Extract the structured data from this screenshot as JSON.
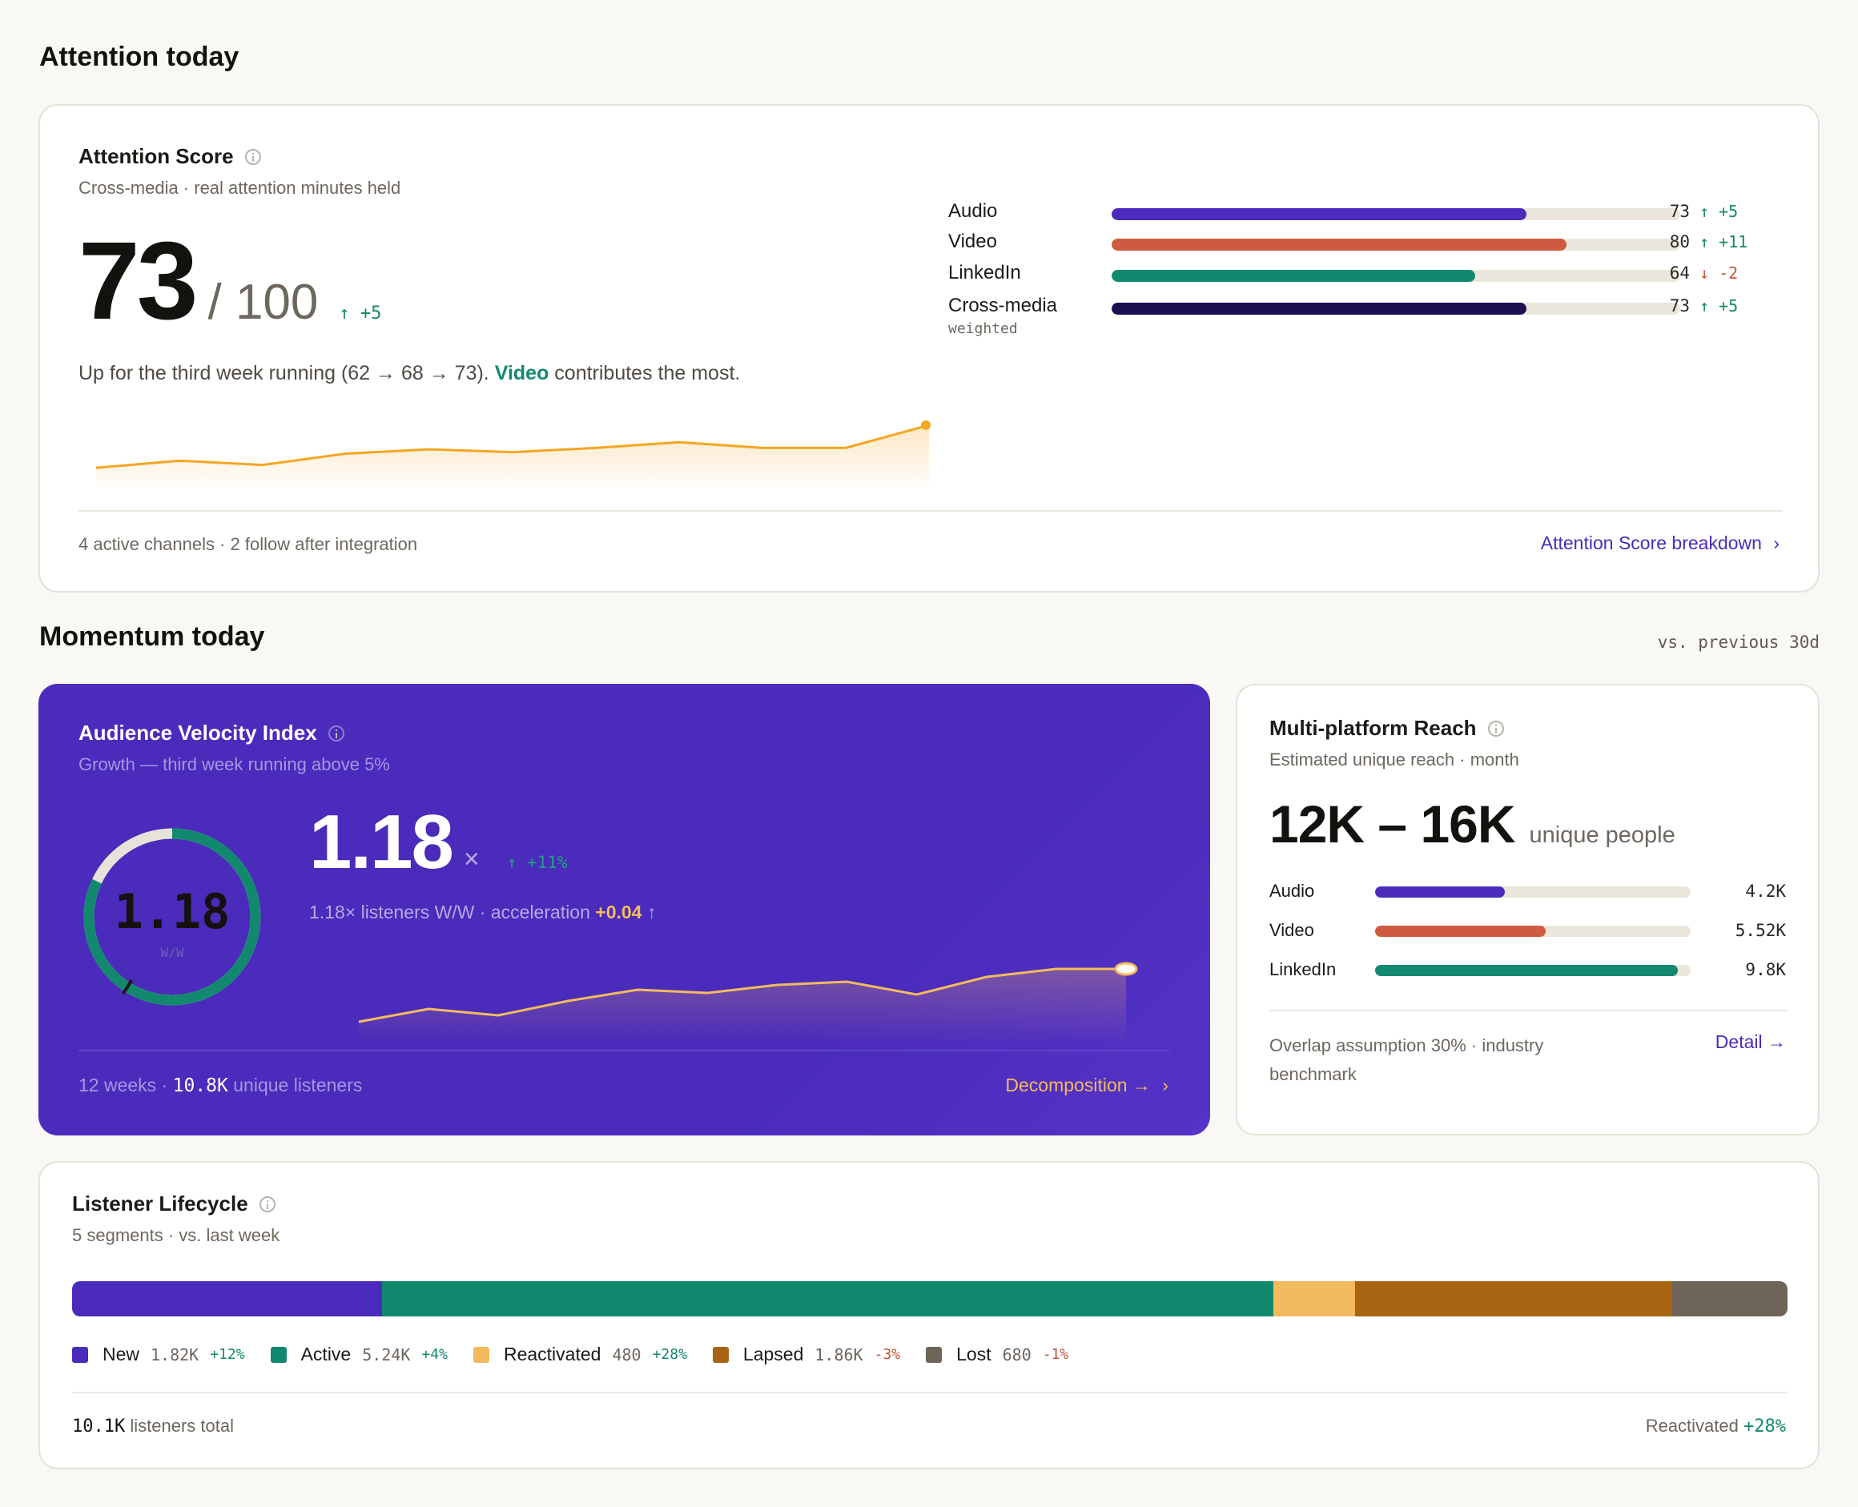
{
  "attention_section": {
    "title": "Attention today"
  },
  "attention_card": {
    "title": "Attention Score",
    "subtitle": "Cross-media · real attention minutes held",
    "score": "73",
    "score_max": "/ 100",
    "score_delta": "+5",
    "summary_prefix": "Up for the third week running (62 → 68 → 73).",
    "summary_highlight": "Video",
    "summary_suffix": "contributes the most.",
    "trend": [
      30,
      35,
      32,
      40,
      43,
      41,
      44,
      48,
      44,
      44,
      60
    ],
    "channels": [
      {
        "name": "Audio",
        "sub": "",
        "value": 73,
        "delta": "+5",
        "direction": "up",
        "color": "#4a2bbb"
      },
      {
        "name": "Video",
        "sub": "",
        "value": 80,
        "delta": "+11",
        "direction": "up",
        "color": "#cf5a3f"
      },
      {
        "name": "LinkedIn",
        "sub": "",
        "value": 64,
        "delta": "-2",
        "direction": "down",
        "color": "#12896f"
      },
      {
        "name": "Cross-media",
        "sub": "weighted",
        "value": 73,
        "delta": "+5",
        "direction": "up",
        "color": "#1b1050"
      }
    ],
    "footer": "4 active channels · 2 follow after integration",
    "link": "Attention Score breakdown"
  },
  "momentum_section": {
    "title": "Momentum today",
    "note": "vs. previous 30d"
  },
  "velocity_card": {
    "title": "Audience Velocity Index",
    "subtitle": "Growth — third week running above 5%",
    "gauge_value": "1.18",
    "gauge_unit": "W/W",
    "gauge_fraction": 0.82,
    "value": "1.18",
    "value_unit": "×",
    "delta": "+11%",
    "desc_prefix": "1.18× listeners W/W · acceleration",
    "desc_highlight": "+0.04",
    "desc_arrow": "↑",
    "trend": [
      20,
      28,
      24,
      33,
      40,
      38,
      43,
      45,
      37,
      48,
      53,
      53
    ],
    "footer_prefix": "12 weeks ·",
    "footer_value": "10.8K",
    "footer_suffix": "unique listeners",
    "link": "Decomposition →"
  },
  "reach_card": {
    "title": "Multi-platform Reach",
    "subtitle": "Estimated unique reach · month",
    "range": "12K – 16K",
    "range_unit": "unique people",
    "platforms": [
      {
        "name": "Audio",
        "value": "4.2K",
        "fraction": 0.41,
        "color": "#4a2bbb"
      },
      {
        "name": "Video",
        "value": "5.52K",
        "fraction": 0.54,
        "color": "#cf5a3f"
      },
      {
        "name": "LinkedIn",
        "value": "9.8K",
        "fraction": 0.96,
        "color": "#12896f"
      }
    ],
    "footer": "Overlap assumption 30% · industry benchmark",
    "link": "Detail →"
  },
  "lifecycle_card": {
    "title": "Listener Lifecycle",
    "subtitle": "5 segments · vs. last week",
    "segments": [
      {
        "name": "New",
        "value": "1.82K",
        "count": 1820,
        "delta": "+12%",
        "color": "#4a2bbb",
        "direction": "up"
      },
      {
        "name": "Active",
        "value": "5.24K",
        "count": 5240,
        "delta": "+4%",
        "color": "#12896f",
        "direction": "up"
      },
      {
        "name": "Reactivated",
        "value": "480",
        "count": 480,
        "delta": "+28%",
        "color": "#f2bb5e",
        "direction": "up"
      },
      {
        "name": "Lapsed",
        "value": "1.86K",
        "count": 1860,
        "delta": "-3%",
        "color": "#a86413",
        "direction": "down"
      },
      {
        "name": "Lost",
        "value": "680",
        "count": 680,
        "delta": "-1%",
        "color": "#6e6457",
        "direction": "down"
      }
    ],
    "footer_value": "10.1K",
    "footer_suffix": "listeners total",
    "footer_right_label": "Reactivated",
    "footer_right_value": "+28%"
  }
}
